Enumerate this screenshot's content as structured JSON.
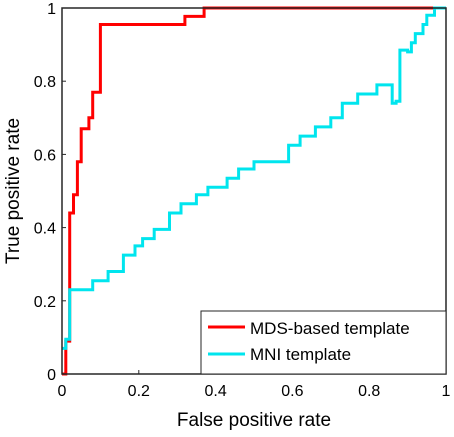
{
  "chart_data": {
    "type": "line",
    "title": "",
    "xlabel": "False positive rate",
    "ylabel": "True positive rate",
    "xlim": [
      0,
      1
    ],
    "ylim": [
      0,
      1
    ],
    "xticks": [
      "0",
      "0.2",
      "0.4",
      "0.6",
      "0.8",
      "1"
    ],
    "yticks": [
      "0",
      "0.2",
      "0.4",
      "0.6",
      "0.8",
      "1"
    ],
    "grid": false,
    "legend_position": "bottom-right",
    "series": [
      {
        "name": "MDS-based template",
        "color": "#ff0000",
        "x": [
          0,
          0.01,
          0.01,
          0.02,
          0.02,
          0.03,
          0.03,
          0.04,
          0.04,
          0.05,
          0.05,
          0.06,
          0.06,
          0.07,
          0.07,
          0.08,
          0.08,
          0.09,
          0.09,
          0.1,
          0.1,
          0.32,
          0.32,
          0.34,
          0.34,
          0.37,
          0.37,
          0.98,
          1
        ],
        "y": [
          0,
          0,
          0.09,
          0.09,
          0.44,
          0.44,
          0.49,
          0.49,
          0.58,
          0.58,
          0.67,
          0.67,
          0.67,
          0.67,
          0.7,
          0.7,
          0.77,
          0.77,
          0.77,
          0.77,
          0.955,
          0.955,
          0.977,
          0.977,
          0.977,
          0.977,
          1.0,
          1.0,
          1.0
        ]
      },
      {
        "name": "MNI template",
        "color": "#00e5ee",
        "x": [
          0,
          0.01,
          0.01,
          0.02,
          0.02,
          0.03,
          0.03,
          0.08,
          0.08,
          0.12,
          0.12,
          0.14,
          0.14,
          0.16,
          0.16,
          0.19,
          0.19,
          0.21,
          0.21,
          0.24,
          0.24,
          0.28,
          0.28,
          0.31,
          0.31,
          0.32,
          0.32,
          0.35,
          0.35,
          0.38,
          0.38,
          0.43,
          0.43,
          0.46,
          0.46,
          0.5,
          0.5,
          0.54,
          0.54,
          0.59,
          0.59,
          0.62,
          0.62,
          0.66,
          0.66,
          0.7,
          0.7,
          0.73,
          0.73,
          0.77,
          0.77,
          0.8,
          0.8,
          0.82,
          0.82,
          0.84,
          0.84,
          0.86,
          0.86,
          0.87,
          0.87,
          0.88,
          0.88,
          0.9,
          0.9,
          0.91,
          0.91,
          0.92,
          0.92,
          0.94,
          0.94,
          0.95,
          0.95,
          0.97,
          0.97,
          1.0
        ],
        "y": [
          0.07,
          0.07,
          0.095,
          0.095,
          0.23,
          0.23,
          0.23,
          0.23,
          0.255,
          0.255,
          0.28,
          0.28,
          0.28,
          0.28,
          0.325,
          0.325,
          0.35,
          0.35,
          0.37,
          0.37,
          0.395,
          0.395,
          0.44,
          0.44,
          0.465,
          0.465,
          0.465,
          0.465,
          0.49,
          0.49,
          0.51,
          0.51,
          0.535,
          0.535,
          0.56,
          0.56,
          0.58,
          0.58,
          0.58,
          0.58,
          0.625,
          0.625,
          0.65,
          0.65,
          0.675,
          0.675,
          0.7,
          0.7,
          0.74,
          0.74,
          0.765,
          0.765,
          0.765,
          0.765,
          0.79,
          0.79,
          0.79,
          0.79,
          0.74,
          0.74,
          0.745,
          0.745,
          0.885,
          0.885,
          0.88,
          0.88,
          0.905,
          0.905,
          0.93,
          0.93,
          0.955,
          0.955,
          0.98,
          0.98,
          1.0,
          1.0
        ]
      }
    ]
  }
}
